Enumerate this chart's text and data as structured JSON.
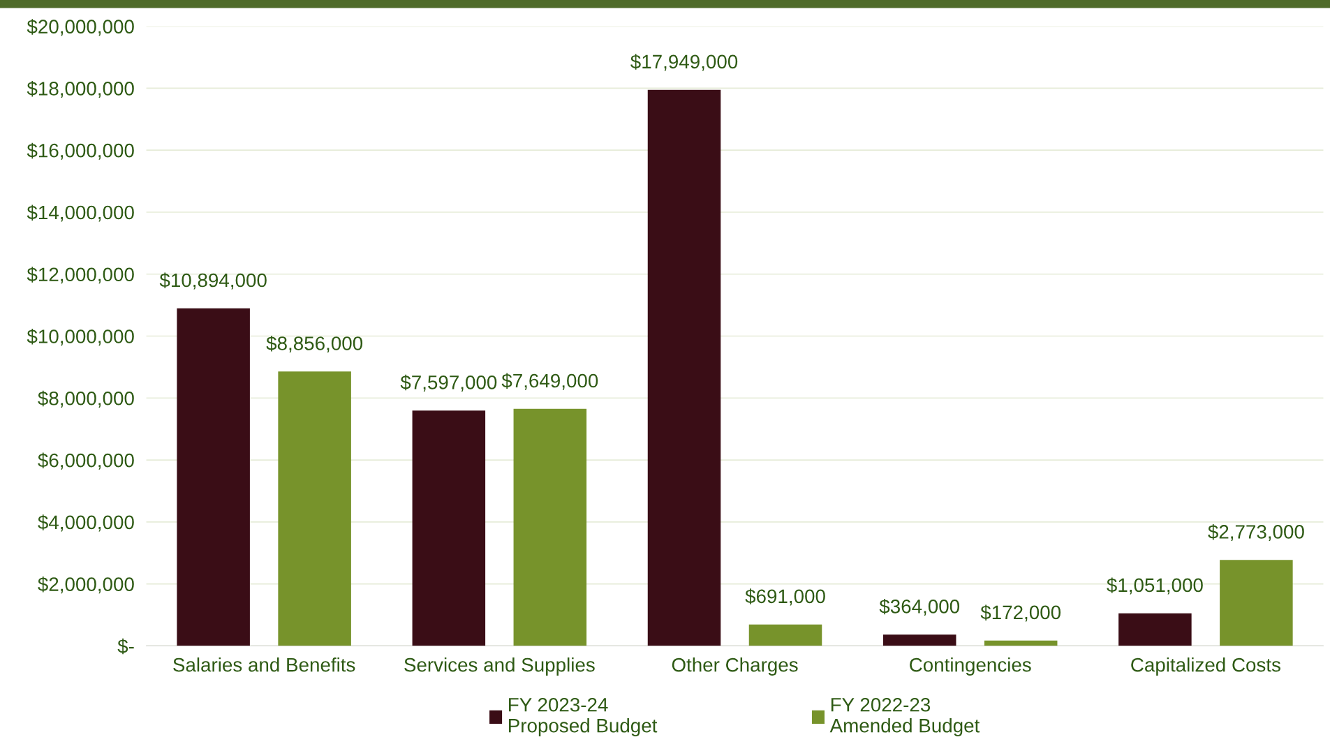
{
  "chart_data": {
    "type": "bar",
    "categories": [
      "Salaries and Benefits",
      "Services and Supplies",
      "Other Charges",
      "Contingencies",
      "Capitalized Costs"
    ],
    "series": [
      {
        "name": "FY 2023-24\nProposed Budget",
        "color": "#3a0d16",
        "values": [
          10894000,
          7597000,
          17949000,
          364000,
          1051000
        ],
        "value_labels": [
          "$10,894,000",
          "$7,597,000",
          "$17,949,000",
          "$364,000",
          "$1,051,000"
        ]
      },
      {
        "name": "FY 2022-23\nAmended Budget",
        "color": "#77932b",
        "values": [
          8856000,
          7649000,
          691000,
          172000,
          2773000
        ],
        "value_labels": [
          "$8,856,000",
          "$7,649,000",
          "$691,000",
          "$172,000",
          "$2,773,000"
        ]
      }
    ],
    "ylim": [
      0,
      20000000
    ],
    "yticks": [
      {
        "value": 0,
        "label": "$-"
      },
      {
        "value": 2000000,
        "label": "$2,000,000"
      },
      {
        "value": 4000000,
        "label": "$4,000,000"
      },
      {
        "value": 6000000,
        "label": "$6,000,000"
      },
      {
        "value": 8000000,
        "label": "$8,000,000"
      },
      {
        "value": 10000000,
        "label": "$10,000,000"
      },
      {
        "value": 12000000,
        "label": "$12,000,000"
      },
      {
        "value": 14000000,
        "label": "$14,000,000"
      },
      {
        "value": 16000000,
        "label": "$16,000,000"
      },
      {
        "value": 18000000,
        "label": "$18,000,000"
      },
      {
        "value": 20000000,
        "label": "$20,000,000"
      }
    ],
    "grid": "y",
    "legend": "bottom"
  }
}
